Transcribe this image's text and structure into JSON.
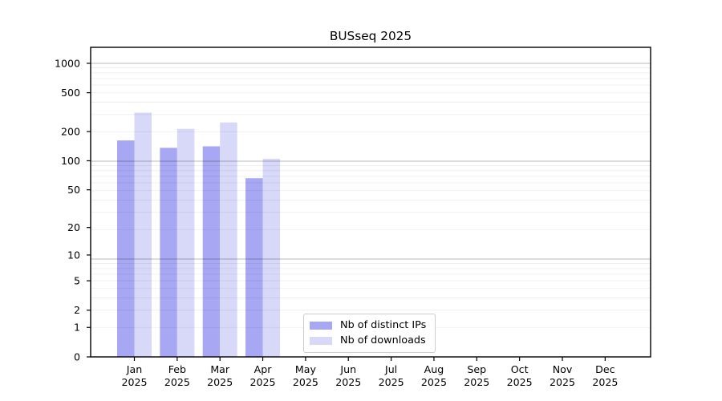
{
  "title": "BUSseq 2025",
  "chart_data": {
    "type": "bar",
    "title": "BUSseq 2025",
    "categories": [
      {
        "month": "Jan",
        "year": "2025"
      },
      {
        "month": "Feb",
        "year": "2025"
      },
      {
        "month": "Mar",
        "year": "2025"
      },
      {
        "month": "Apr",
        "year": "2025"
      },
      {
        "month": "May",
        "year": "2025"
      },
      {
        "month": "Jun",
        "year": "2025"
      },
      {
        "month": "Jul",
        "year": "2025"
      },
      {
        "month": "Aug",
        "year": "2025"
      },
      {
        "month": "Sep",
        "year": "2025"
      },
      {
        "month": "Oct",
        "year": "2025"
      },
      {
        "month": "Nov",
        "year": "2025"
      },
      {
        "month": "Dec",
        "year": "2025"
      }
    ],
    "series": [
      {
        "name": "Nb of distinct IPs",
        "color": "#a7a7f3",
        "values": [
          162,
          136,
          141,
          66,
          0,
          0,
          0,
          0,
          0,
          0,
          0,
          0
        ]
      },
      {
        "name": "Nb of downloads",
        "color": "#d8d8f9",
        "values": [
          313,
          213,
          248,
          105,
          0,
          0,
          0,
          0,
          0,
          0,
          0,
          0
        ]
      }
    ],
    "y_axis": {
      "ticks": [
        0,
        1,
        2,
        5,
        10,
        20,
        50,
        100,
        200,
        500,
        1000
      ],
      "scale": "log10(1+y)",
      "range": [
        0,
        1458
      ]
    },
    "x_axis": {
      "label_lines": 2
    },
    "grid": {
      "horizontal": true,
      "minor_color": "rgba(0,0,0,0.075)",
      "major_color": "rgba(0,0,0,0.28)"
    },
    "legend": {
      "position": "inside-bottom-center",
      "border_color": "#cccccc",
      "background": "#ffffff"
    },
    "spine_color": "#000000"
  }
}
